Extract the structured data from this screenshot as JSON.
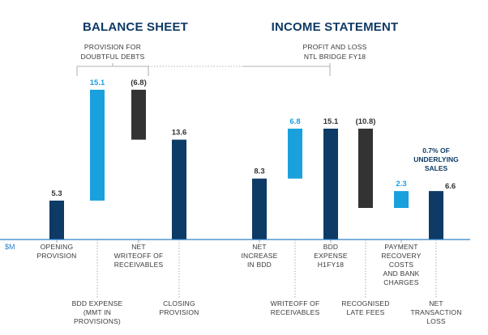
{
  "colors": {
    "navy": "#0e3a66",
    "sky": "#1aa0dc",
    "charcoal": "#333333",
    "title": "#0e3a66",
    "axis": "#2f80c8",
    "guide": "#9a9a9a",
    "text": "#3a3a3a"
  },
  "headings": {
    "balance": "BALANCE SHEET",
    "income": "INCOME STATEMENT"
  },
  "brackets": {
    "left": [
      "PROVISION FOR",
      "DOUBTFUL DEBTS"
    ],
    "right": [
      "PROFIT AND LOSS",
      "NTL BRIDGE FY18"
    ]
  },
  "chart_data": {
    "type": "bar",
    "subtype": "waterfall",
    "ylabel": "$M",
    "ylim": [
      0,
      20.5
    ],
    "grid": false,
    "legend": "none",
    "bars": [
      {
        "category": [
          "OPENING",
          "PROVISION"
        ],
        "label": "5.3",
        "from": 0,
        "to": 5.3,
        "color": "navy",
        "label_pos": "above",
        "cat_row": "top"
      },
      {
        "category": [
          "BDD EXPENSE",
          "(MMT IN",
          "PROVISIONS)"
        ],
        "label": "15.1",
        "from": 5.3,
        "to": 20.4,
        "color": "sky",
        "label_pos": "above",
        "cat_row": "bottom"
      },
      {
        "category": [
          "NET",
          "WRITEOFF OF",
          "RECEIVABLES"
        ],
        "label": "(6.8)",
        "from": 13.6,
        "to": 20.4,
        "color": "charcoal",
        "label_pos": "above",
        "cat_row": "top"
      },
      {
        "category": [
          "CLOSING",
          "PROVISION"
        ],
        "label": "13.6",
        "from": 0,
        "to": 13.6,
        "color": "navy",
        "label_pos": "above",
        "cat_row": "bottom"
      },
      {
        "category": [
          "NET",
          "INCREASE",
          "IN BDD"
        ],
        "label": "8.3",
        "from": 0,
        "to": 8.3,
        "color": "navy",
        "label_pos": "above",
        "cat_row": "top"
      },
      {
        "category": [
          "WRITEOFF OF",
          "RECEIVABLES"
        ],
        "label": "6.8",
        "from": 8.3,
        "to": 15.1,
        "color": "sky",
        "label_pos": "above",
        "cat_row": "bottom"
      },
      {
        "category": [
          "BDD",
          "EXPENSE",
          "H1FY18"
        ],
        "label": "15.1",
        "from": 0,
        "to": 15.1,
        "color": "navy",
        "label_pos": "above",
        "cat_row": "top"
      },
      {
        "category": [
          "RECOGNISED",
          "LATE FEES"
        ],
        "label": "(10.8)",
        "from": 4.3,
        "to": 15.1,
        "color": "charcoal",
        "label_pos": "above",
        "cat_row": "bottom"
      },
      {
        "category": [
          "PAYMENT",
          "RECOVERY",
          "COSTS",
          "AND BANK",
          "CHARGES"
        ],
        "label": "2.3",
        "from": 4.3,
        "to": 6.6,
        "color": "sky",
        "label_pos": "above",
        "cat_row": "top"
      },
      {
        "category": [
          "NET",
          "TRANSACTION",
          "LOSS"
        ],
        "label": "6.6",
        "from": 0,
        "to": 6.6,
        "color": "navy",
        "label_pos": "right",
        "cat_row": "bottom"
      }
    ],
    "annotation": {
      "lines": [
        "0.7% OF",
        "UNDERLYING",
        "SALES"
      ],
      "bar": 9
    }
  }
}
